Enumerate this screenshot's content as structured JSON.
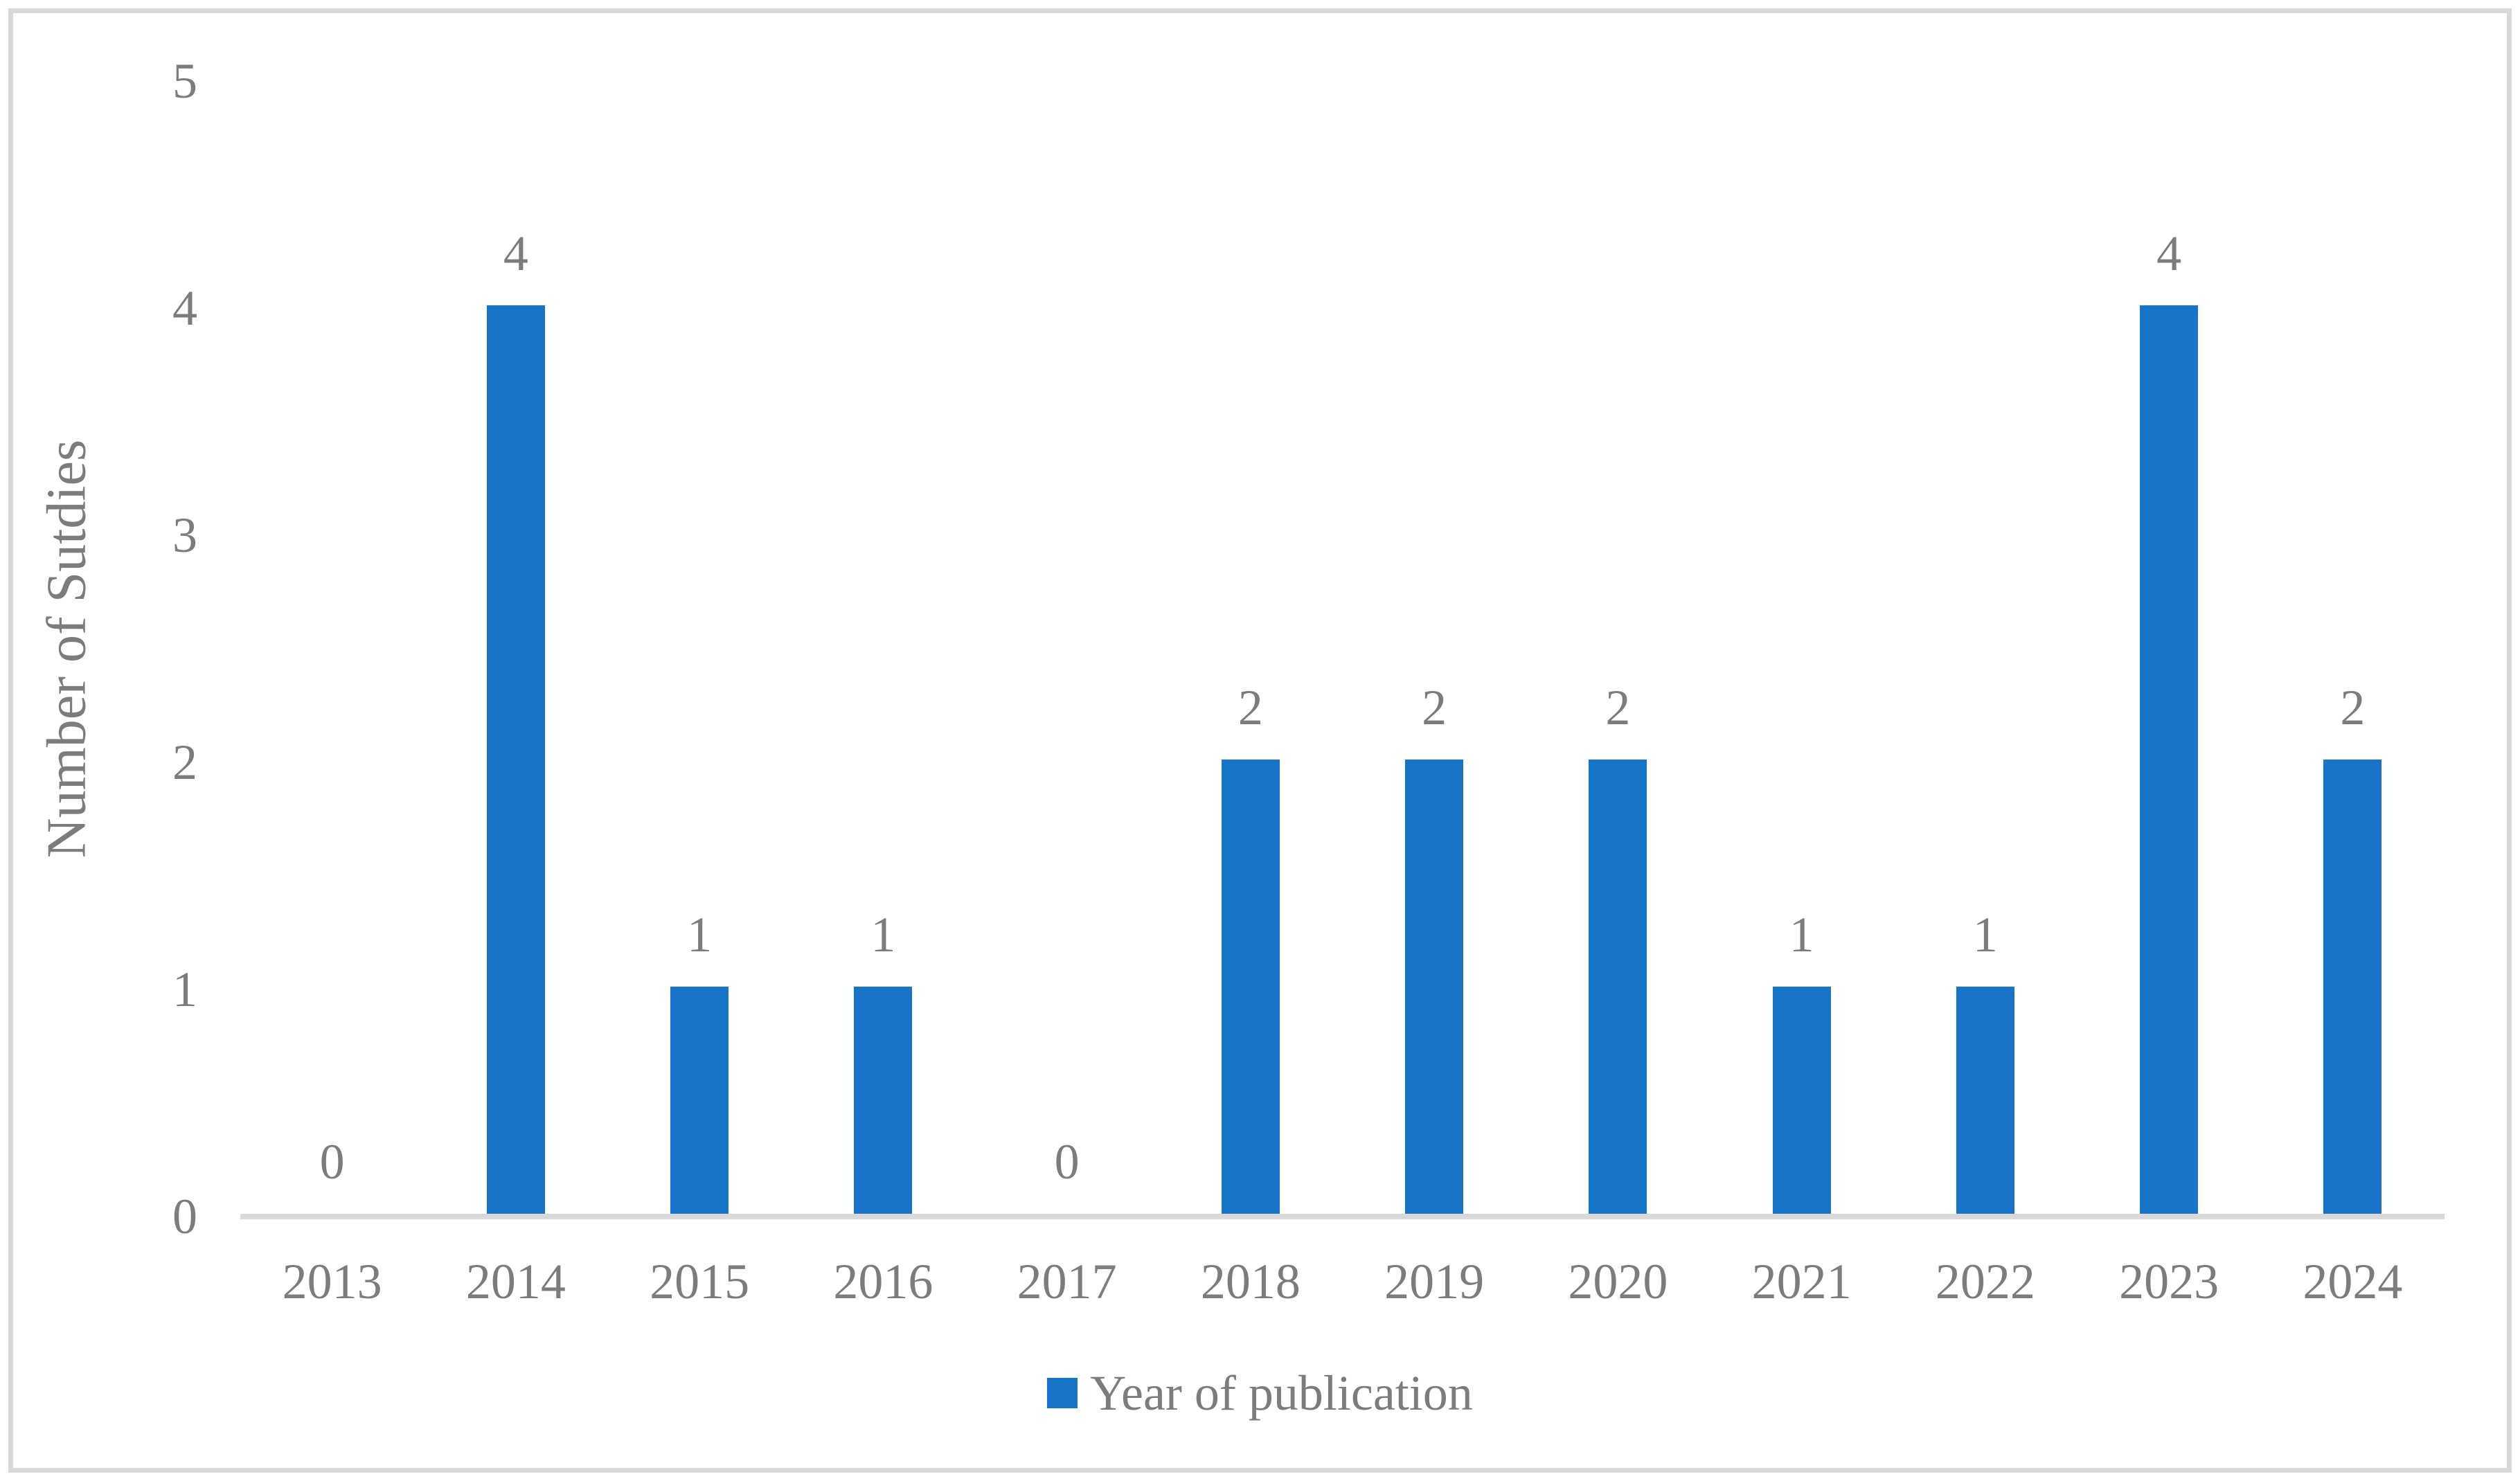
{
  "chart_data": {
    "type": "bar",
    "title": "",
    "categories": [
      "2013",
      "2014",
      "2015",
      "2016",
      "2017",
      "2018",
      "2019",
      "2020",
      "2021",
      "2022",
      "2023",
      "2024"
    ],
    "values": [
      0,
      4,
      1,
      1,
      0,
      2,
      2,
      2,
      1,
      1,
      4,
      2
    ],
    "series_name": "Year of publication",
    "xlabel": "",
    "ylabel": "Number of Sutdies",
    "ylim": [
      0,
      5
    ],
    "yticks": [
      "0",
      "1",
      "2",
      "3",
      "4",
      "5"
    ],
    "grid": "off",
    "data_labels_shown": true,
    "legend_position": "bottom-center",
    "legend_label": "Year of publication",
    "colors": {
      "bar": "#1774C9",
      "text": "#7C7C7C",
      "axis_line": "#D9D9D9",
      "frame_border": "#D9D9D9",
      "background": "#FFFFFF"
    }
  }
}
